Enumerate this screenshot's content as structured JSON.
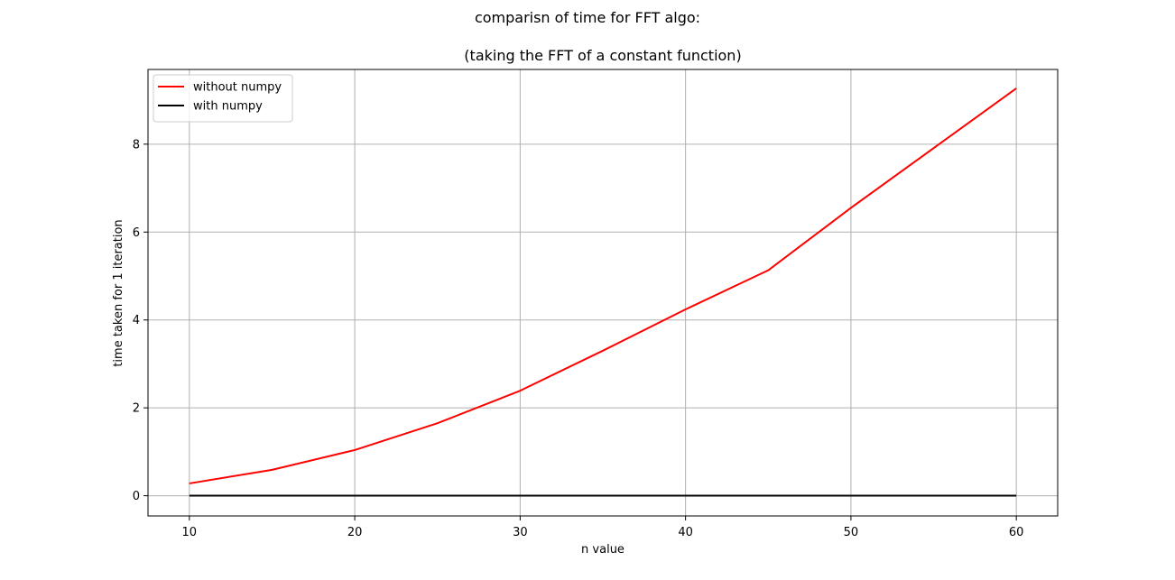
{
  "chart_data": {
    "type": "line",
    "title": "comparisn of time for FFT algo:",
    "subtitle": "(taking the FFT of a constant function)",
    "xlabel": "n value",
    "ylabel": "time taken for 1 iteration",
    "xlim": [
      7.5,
      62.5
    ],
    "ylim": [
      -0.46,
      9.7
    ],
    "xticks": [
      10,
      20,
      30,
      40,
      50,
      60
    ],
    "yticks": [
      0,
      2,
      4,
      6,
      8
    ],
    "grid": true,
    "legend_position": "upper left",
    "series": [
      {
        "name": "without numpy",
        "color": "#ff0000",
        "x": [
          10,
          15,
          20,
          25,
          30,
          35,
          40,
          45,
          50,
          55,
          60
        ],
        "y": [
          0.28,
          0.59,
          1.04,
          1.65,
          2.39,
          3.3,
          4.24,
          5.13,
          6.55,
          7.91,
          9.27
        ]
      },
      {
        "name": "with numpy",
        "color": "#000000",
        "x": [
          10,
          15,
          20,
          25,
          30,
          35,
          40,
          45,
          50,
          55,
          60
        ],
        "y": [
          0.001,
          0.001,
          0.001,
          0.001,
          0.001,
          0.001,
          0.001,
          0.001,
          0.001,
          0.001,
          0.001
        ]
      }
    ]
  }
}
